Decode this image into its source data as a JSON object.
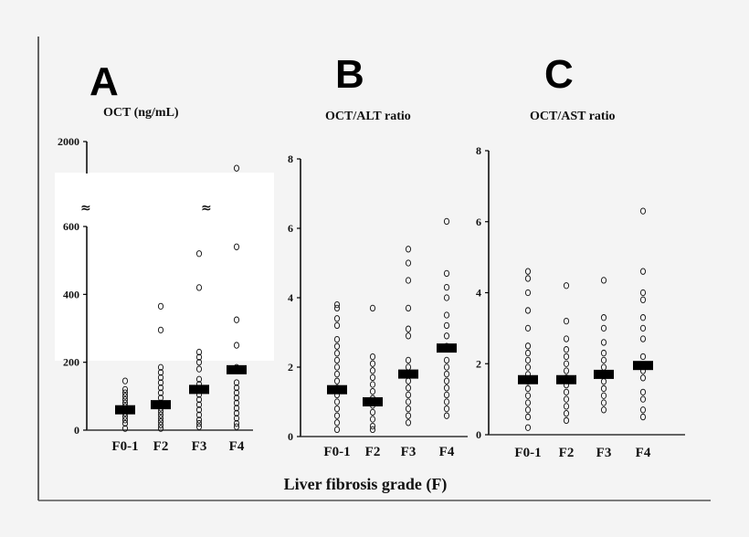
{
  "chart_data": [
    {
      "type": "scatter",
      "panel_letter": "A",
      "title": "OCT (ng/mL)",
      "categories": [
        "F0-1",
        "F2",
        "F3",
        "F4"
      ],
      "yticks": [
        "0",
        "200",
        "400",
        "600",
        "2000"
      ],
      "ylim": [
        0,
        2000
      ],
      "axis_break": [
        600,
        1700
      ],
      "axis_break_symbol": "≈",
      "points": [
        [
          5,
          20,
          30,
          40,
          50,
          60,
          70,
          80,
          90,
          100,
          110,
          120,
          145
        ],
        [
          5,
          15,
          25,
          35,
          45,
          55,
          65,
          80,
          95,
          110,
          125,
          140,
          155,
          170,
          185,
          295,
          365
        ],
        [
          10,
          20,
          30,
          45,
          60,
          75,
          90,
          105,
          120,
          135,
          150,
          180,
          200,
          215,
          230,
          420,
          520
        ],
        [
          10,
          20,
          35,
          50,
          65,
          80,
          95,
          110,
          125,
          140,
          185,
          250,
          325,
          540,
          1750
        ]
      ],
      "medians": [
        60,
        75,
        120,
        178
      ]
    },
    {
      "type": "scatter",
      "panel_letter": "B",
      "title": "OCT/ALT ratio",
      "categories": [
        "F0-1",
        "F2",
        "F3",
        "F4"
      ],
      "yticks": [
        "0",
        "2",
        "4",
        "6",
        "8"
      ],
      "ylim": [
        0,
        8
      ],
      "points": [
        [
          0.2,
          0.4,
          0.6,
          0.8,
          1.0,
          1.2,
          1.4,
          1.6,
          1.8,
          2.0,
          2.2,
          2.4,
          2.6,
          2.8,
          3.2,
          3.4,
          3.7,
          3.8
        ],
        [
          0.2,
          0.3,
          0.5,
          0.7,
          0.9,
          1.1,
          1.3,
          1.5,
          1.7,
          1.9,
          2.1,
          2.3,
          3.7
        ],
        [
          0.4,
          0.6,
          0.8,
          1.0,
          1.2,
          1.4,
          1.6,
          1.8,
          2.0,
          2.2,
          2.9,
          3.1,
          3.7,
          4.5,
          5.0,
          5.4
        ],
        [
          0.6,
          0.8,
          1.0,
          1.2,
          1.4,
          1.6,
          1.8,
          2.0,
          2.2,
          2.6,
          2.9,
          3.2,
          3.5,
          4.0,
          4.3,
          4.7,
          6.2
        ]
      ],
      "medians": [
        1.35,
        1.0,
        1.8,
        2.55
      ]
    },
    {
      "type": "scatter",
      "panel_letter": "C",
      "title": "OCT/AST ratio",
      "categories": [
        "F0-1",
        "F2",
        "F3",
        "F4"
      ],
      "yticks": [
        "0",
        "2",
        "4",
        "6",
        "8"
      ],
      "ylim": [
        0,
        8
      ],
      "points": [
        [
          0.2,
          0.5,
          0.7,
          0.9,
          1.1,
          1.3,
          1.5,
          1.7,
          1.9,
          2.1,
          2.3,
          2.5,
          3.0,
          3.5,
          4.0,
          4.4,
          4.6
        ],
        [
          0.4,
          0.6,
          0.8,
          1.0,
          1.2,
          1.4,
          1.6,
          1.8,
          2.0,
          2.2,
          2.4,
          2.7,
          3.2,
          4.2
        ],
        [
          0.7,
          0.9,
          1.1,
          1.3,
          1.5,
          1.7,
          1.9,
          2.1,
          2.3,
          2.6,
          3.0,
          3.3,
          4.35
        ],
        [
          0.5,
          0.7,
          1.0,
          1.2,
          1.6,
          1.8,
          2.2,
          2.7,
          3.0,
          3.3,
          3.8,
          4.0,
          4.6,
          6.3
        ]
      ],
      "medians": [
        1.55,
        1.55,
        1.7,
        1.95
      ]
    }
  ],
  "xlabel": "Liver fibrosis grade (F)",
  "colors": {
    "background": "#f4f4f4",
    "marks": "#000000",
    "inset": "#ffffff"
  }
}
